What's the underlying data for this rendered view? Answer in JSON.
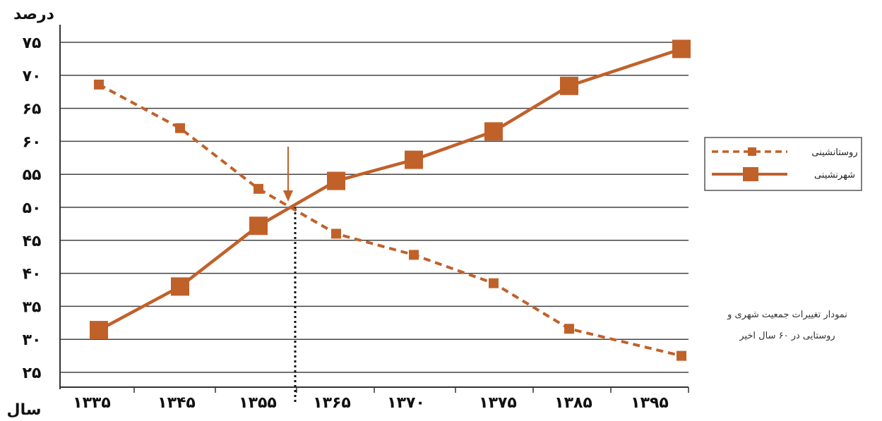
{
  "chart_data": {
    "type": "line",
    "ylabel": "درصد",
    "xlabel": "سال",
    "ylim": [
      25,
      75
    ],
    "y_ticks": [
      "۲۵",
      "۳۰",
      "۳۵",
      "۴۰",
      "۴۵",
      "۵۰",
      "۵۵",
      "۶۰",
      "۶۵",
      "۷۰",
      "۷۵"
    ],
    "x_ticks": [
      "۱۳۳۵",
      "۱۳۴۵",
      "۱۳۵۵",
      "۱۳۶۵",
      "۱۳۷۰",
      "۱۳۷۵",
      "۱۳۸۵",
      "۱۳۹۵"
    ],
    "series": [
      {
        "name": "روستانشینی",
        "style": "dashed",
        "color": "#c0612a",
        "values": [
          68.6,
          62.0,
          52.8,
          46.0,
          42.8,
          38.5,
          31.6,
          27.5
        ]
      },
      {
        "name": "شهرنشینی",
        "style": "solid",
        "color": "#c0612a",
        "values": [
          31.4,
          38.0,
          47.2,
          54.0,
          57.2,
          61.5,
          68.4,
          74.0
        ]
      }
    ],
    "grid": true,
    "legend": "right",
    "crossover_value": 50
  },
  "caption": {
    "line1": "نمودار تغییرات جمعیت شهری و",
    "line2": "روستایی در ۶۰ سال اخیر"
  }
}
